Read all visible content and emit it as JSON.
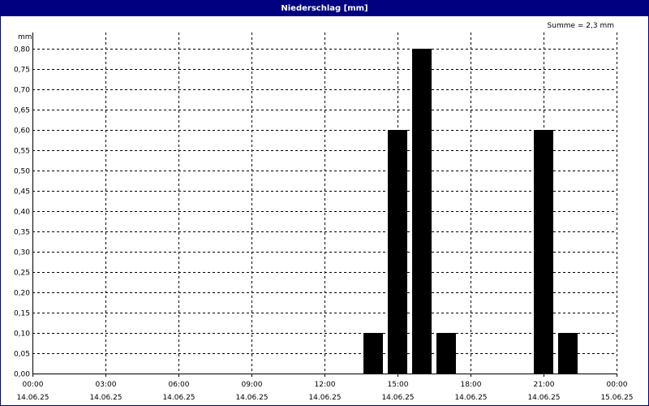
{
  "window": {
    "title": "Niederschlag [mm]"
  },
  "chart_data": {
    "type": "bar",
    "title": "Niederschlag [mm]",
    "ylabel": "mm",
    "summary": "Summe = 2,3 mm",
    "ylim": [
      0,
      0.8
    ],
    "xlim_hours": [
      0,
      24
    ],
    "grid": true,
    "y_ticks": [
      "0,00",
      "0,05",
      "0,10",
      "0,15",
      "0,20",
      "0,25",
      "0,30",
      "0,35",
      "0,40",
      "0,45",
      "0,50",
      "0,55",
      "0,60",
      "0,65",
      "0,70",
      "0,75",
      "0,80"
    ],
    "x_ticks": [
      {
        "time": "00:00",
        "date": "14.06.25"
      },
      {
        "time": "03:00",
        "date": "14.06.25"
      },
      {
        "time": "06:00",
        "date": "14.06.25"
      },
      {
        "time": "09:00",
        "date": "14.06.25"
      },
      {
        "time": "12:00",
        "date": "14.06.25"
      },
      {
        "time": "15:00",
        "date": "14.06.25"
      },
      {
        "time": "18:00",
        "date": "14.06.25"
      },
      {
        "time": "21:00",
        "date": "14.06.25"
      },
      {
        "time": "00:00",
        "date": "15.06.25"
      }
    ],
    "bars": [
      {
        "time": "14:00",
        "value": 0.1
      },
      {
        "time": "15:00",
        "value": 0.6
      },
      {
        "time": "16:00",
        "value": 0.8
      },
      {
        "time": "17:00",
        "value": 0.1
      },
      {
        "time": "21:00",
        "value": 0.6
      },
      {
        "time": "22:00",
        "value": 0.1
      }
    ],
    "bar_color": "#000000",
    "grid_color": "#000000"
  }
}
